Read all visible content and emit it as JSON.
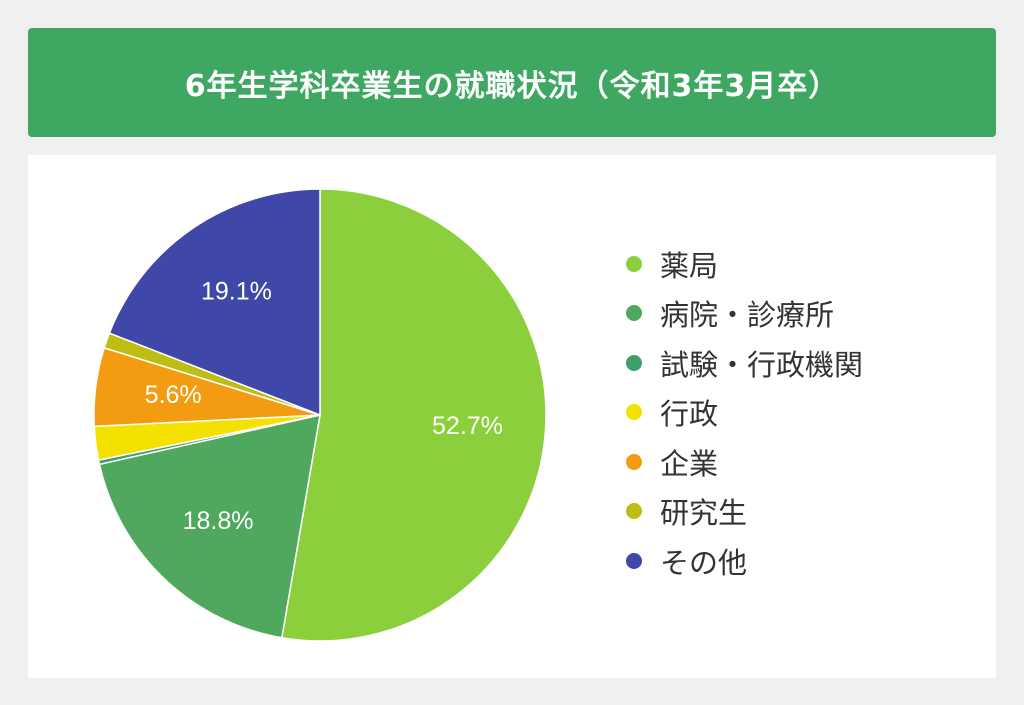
{
  "header": {
    "title": "6年生学科卒業生の就職状況（令和3年3月卒）",
    "background_color": "#3ea862"
  },
  "chart_data": {
    "type": "pie",
    "title": "6年生学科卒業生の就職状況（令和3年3月卒）",
    "start_angle_deg": 0,
    "direction": "clockwise",
    "legend_position": "right",
    "slices": [
      {
        "label": "薬局",
        "value": 52.7,
        "color": "#8ccf3c",
        "data_label": "52.7%"
      },
      {
        "label": "病院・診療所",
        "value": 18.8,
        "color": "#4fa85e",
        "data_label": "18.8%"
      },
      {
        "label": "試験・行政機関",
        "value": 0.3,
        "color": "#3f9f6a",
        "data_label": ""
      },
      {
        "label": "行政",
        "value": 2.4,
        "color": "#f5e100",
        "data_label": ""
      },
      {
        "label": "企業",
        "value": 5.6,
        "color": "#f39c12",
        "data_label": "5.6%"
      },
      {
        "label": "研究生",
        "value": 1.1,
        "color": "#bdbd13",
        "data_label": ""
      },
      {
        "label": "その他",
        "value": 19.1,
        "color": "#3f48a8",
        "data_label": "19.1%"
      }
    ]
  }
}
